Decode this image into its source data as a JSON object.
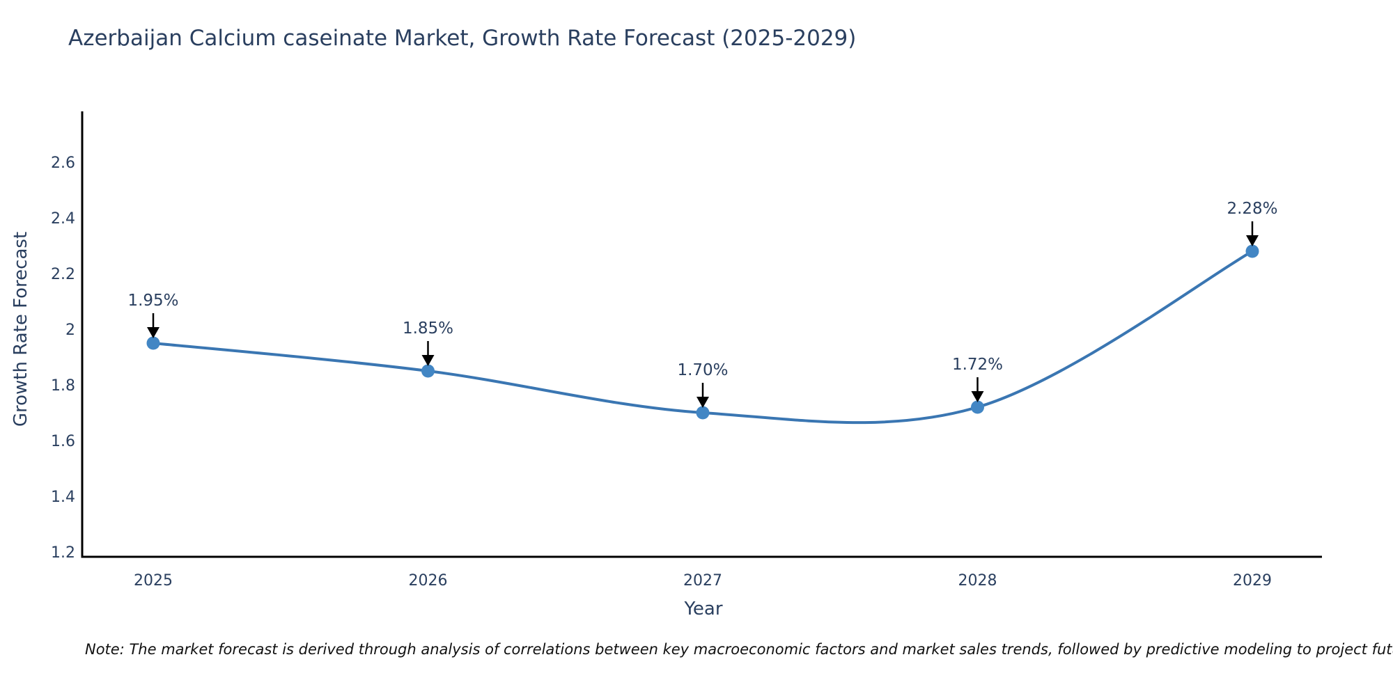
{
  "title": "Azerbaijan Calcium caseinate Market, Growth Rate Forecast (2025-2029)",
  "note": "Note: The market forecast is derived through analysis of correlations between key macroeconomic factors and market sales trends, followed by predictive modeling to project future sales",
  "chart_data": {
    "type": "line",
    "title": "Azerbaijan Calcium caseinate Market, Growth Rate Forecast (2025-2029)",
    "xlabel": "Year",
    "ylabel": "Growth Rate Forecast",
    "x": [
      2025,
      2026,
      2027,
      2028,
      2029
    ],
    "y": [
      1.95,
      1.85,
      1.7,
      1.72,
      2.28
    ],
    "point_labels": [
      "1.95%",
      "1.85%",
      "1.70%",
      "1.72%",
      "2.28%"
    ],
    "xtick_labels": [
      "2025",
      "2026",
      "2027",
      "2028",
      "2029"
    ],
    "yticks": [
      1.2,
      1.4,
      1.6,
      1.8,
      2,
      2.2,
      2.4,
      2.6
    ],
    "ytick_labels": [
      "1.2",
      "1.4",
      "1.6",
      "1.8",
      "2",
      "2.2",
      "2.4",
      "2.6"
    ],
    "xlim": [
      2024.74,
      2029.26
    ],
    "ylim": [
      1.18,
      2.78
    ],
    "grid": false,
    "legend": "none",
    "line_smoothing": "spline",
    "colors": {
      "line": "#3a76b2",
      "marker": "#4286c4",
      "arrow": "#000000",
      "text": "#2a3f5f",
      "spine": "#000000"
    }
  }
}
